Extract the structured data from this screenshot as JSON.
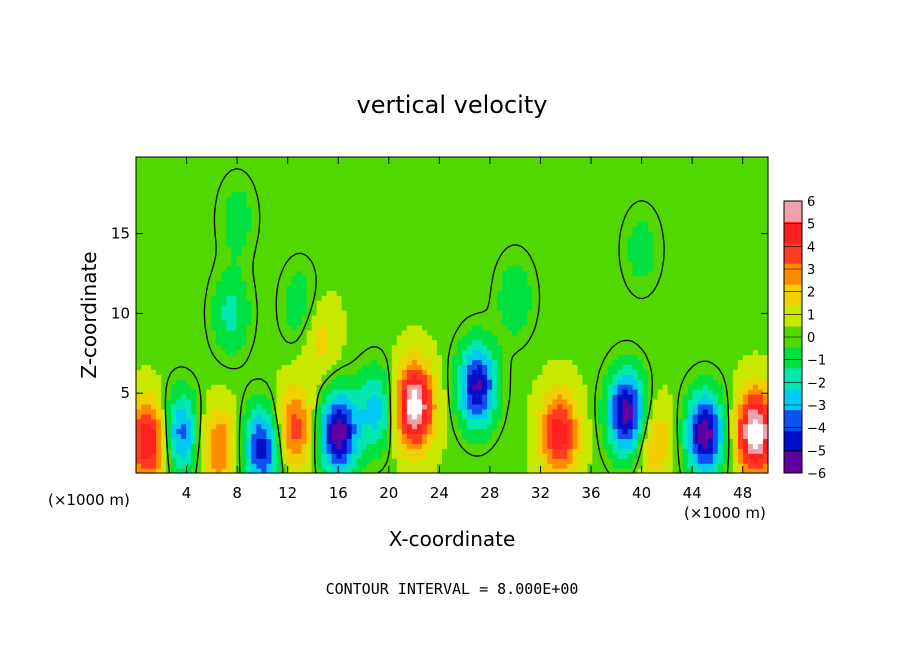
{
  "chart_data": {
    "type": "heatmap",
    "title": "vertical velocity",
    "xlabel": "X-coordinate",
    "ylabel": "Z-coordinate",
    "x_units_left": "(×1000 m)",
    "x_units_right": "(×1000 m)",
    "footer": "CONTOUR INTERVAL = 8.000E+00",
    "xlim": [
      0,
      50
    ],
    "ylim": [
      0,
      19.8
    ],
    "x_ticks": [
      "4",
      "8",
      "12",
      "16",
      "20",
      "24",
      "28",
      "32",
      "36",
      "40",
      "44",
      "48"
    ],
    "y_ticks": [
      "5",
      "10",
      "15"
    ],
    "colorbar": {
      "range": [
        -6,
        6
      ],
      "labels": [
        "6",
        "5",
        "4",
        "3",
        "2",
        "1",
        "0",
        "−1",
        "−2",
        "−3",
        "−4",
        "−5",
        "−6"
      ],
      "colors": [
        "#f4a0a8",
        "#ff2020",
        "#ff3c20",
        "#ff8c00",
        "#f0d000",
        "#c8e800",
        "#50d800",
        "#00e040",
        "#00e8b0",
        "#00c8f0",
        "#1050f0",
        "#0010c8",
        "#6000a0"
      ]
    },
    "background_value": 0.3,
    "features": [
      {
        "x": 1.0,
        "z": 2.0,
        "value": 5.0
      },
      {
        "x": 3.5,
        "z": 2.5,
        "value": -4.0
      },
      {
        "x": 6.5,
        "z": 1.6,
        "value": 3.0
      },
      {
        "x": 10.0,
        "z": 1.6,
        "value": -5.0
      },
      {
        "x": 12.5,
        "z": 2.8,
        "value": 3.5
      },
      {
        "x": 16.0,
        "z": 2.5,
        "value": -6.0
      },
      {
        "x": 19.0,
        "z": 4.0,
        "value": -3.0
      },
      {
        "x": 22.0,
        "z": 4.2,
        "value": 6.5
      },
      {
        "x": 27.0,
        "z": 5.5,
        "value": -5.5
      },
      {
        "x": 33.5,
        "z": 2.5,
        "value": 4.5
      },
      {
        "x": 38.8,
        "z": 3.8,
        "value": -6.0
      },
      {
        "x": 41.0,
        "z": 2.0,
        "value": 2.0
      },
      {
        "x": 45.0,
        "z": 2.5,
        "value": -6.0
      },
      {
        "x": 49.0,
        "z": 2.6,
        "value": 6.5
      },
      {
        "x": 7.5,
        "z": 10.0,
        "value": -2.0
      },
      {
        "x": 13.0,
        "z": 10.5,
        "value": -1.5
      },
      {
        "x": 14.5,
        "z": 8.5,
        "value": 1.5
      },
      {
        "x": 8.0,
        "z": 16.0,
        "value": -1.2
      },
      {
        "x": 30.0,
        "z": 11.0,
        "value": -1.5
      },
      {
        "x": 40.0,
        "z": 14.0,
        "value": -1.2
      }
    ]
  }
}
